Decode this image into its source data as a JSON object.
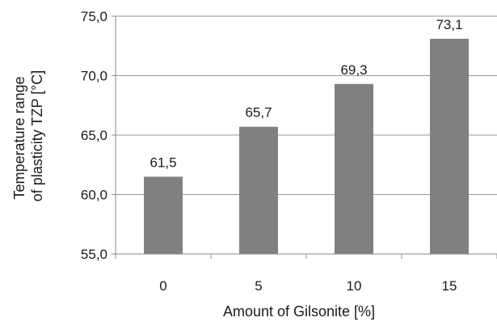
{
  "chart_data": {
    "type": "bar",
    "categories": [
      "0",
      "5",
      "10",
      "15"
    ],
    "values": [
      61.5,
      65.7,
      69.3,
      73.1
    ],
    "data_labels": [
      "61,5",
      "65,7",
      "69,3",
      "73,1"
    ],
    "ylim": [
      55,
      75
    ],
    "yticks": [
      55,
      60,
      65,
      70,
      75
    ],
    "ytick_labels": [
      "55,0",
      "60,0",
      "65,0",
      "70,0",
      "75,0"
    ],
    "xlabel": "Amount of Gilsonite  [%]",
    "ylabel_lines": [
      "Temperature  range",
      "of plasticity TZP [°C]"
    ],
    "grid": true,
    "legend": "none",
    "bar_color": "#808080",
    "grid_color": "#999999"
  }
}
